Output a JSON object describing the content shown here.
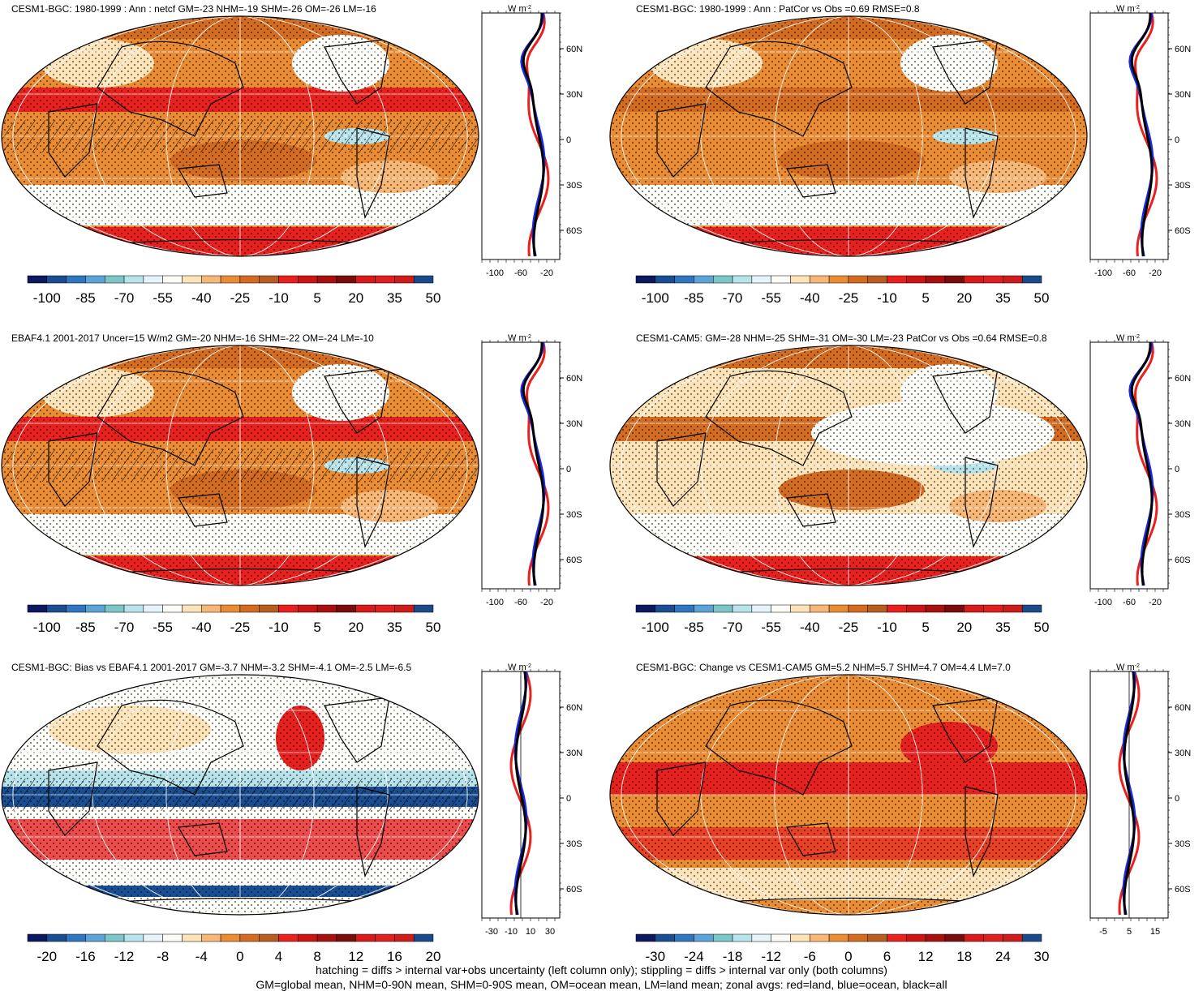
{
  "panels": [
    {
      "title": "CESM1-BGC: 1980-1999 : Ann : netcf GM=-23 NHM=-19 SHM=-26 OM=-26 LM=-16",
      "colorbar_labels": [
        "-100",
        "-85",
        "-70",
        "-55",
        "-40",
        "-25",
        "-10",
        "5",
        "20",
        "35",
        "50"
      ],
      "zonal_xticks": [
        "-100",
        "-60",
        "-20"
      ],
      "zonal_yticks": [
        "60N",
        "30N",
        "0",
        "30S",
        "60S"
      ],
      "zonal_units": "W m",
      "zonal_units_sup": "-2",
      "hatching": true
    },
    {
      "title": "CESM1-BGC: 1980-1999 : Ann : PatCor vs Obs =0.69 RMSE=0.8",
      "colorbar_labels": [
        "-100",
        "-85",
        "-70",
        "-55",
        "-40",
        "-25",
        "-10",
        "5",
        "20",
        "35",
        "50"
      ],
      "zonal_xticks": [
        "-100",
        "-60",
        "-20"
      ],
      "zonal_yticks": [
        "60N",
        "30N",
        "0",
        "30S",
        "60S"
      ],
      "zonal_units": "W m",
      "zonal_units_sup": "-2",
      "hatching": false
    },
    {
      "title": "EBAF4.1 2001-2017 Uncer=15 W/m2 GM=-20 NHM=-16 SHM=-22 OM=-24 LM=-10",
      "colorbar_labels": [
        "-100",
        "-85",
        "-70",
        "-55",
        "-40",
        "-25",
        "-10",
        "5",
        "20",
        "35",
        "50"
      ],
      "zonal_xticks": [
        "-100",
        "-60",
        "-20"
      ],
      "zonal_yticks": [
        "60N",
        "30N",
        "0",
        "30S",
        "60S"
      ],
      "zonal_units": "W m",
      "zonal_units_sup": "-2",
      "hatching": true
    },
    {
      "title": "CESM1-CAM5: GM=-28 NHM=-25 SHM=-31 OM=-30 LM=-23 PatCor vs Obs =0.64 RMSE=0.8",
      "colorbar_labels": [
        "-100",
        "-85",
        "-70",
        "-55",
        "-40",
        "-25",
        "-10",
        "5",
        "20",
        "35",
        "50"
      ],
      "zonal_xticks": [
        "-100",
        "-60",
        "-20"
      ],
      "zonal_yticks": [
        "60N",
        "30N",
        "0",
        "30S",
        "60S"
      ],
      "zonal_units": "W m",
      "zonal_units_sup": "-2",
      "hatching": false
    },
    {
      "title": "CESM1-BGC: Bias vs EBAF4.1 2001-2017 GM=-3.7 NHM=-3.2 SHM=-4.1 OM=-2.5 LM=-6.5",
      "colorbar_labels": [
        "-20",
        "-16",
        "-12",
        "-8",
        "-4",
        "0",
        "4",
        "8",
        "12",
        "16",
        "20"
      ],
      "zonal_xticks": [
        "-30",
        "-10",
        "10",
        "30"
      ],
      "zonal_yticks": [
        "60N",
        "30N",
        "0",
        "30S",
        "60S"
      ],
      "zonal_units": "W m",
      "zonal_units_sup": "-2",
      "hatching": true
    },
    {
      "title": "CESM1-BGC: Change vs CESM1-CAM5 GM=5.2 NHM=5.7 SHM=4.7 OM=4.4 LM=7.0",
      "colorbar_labels": [
        "-30",
        "-24",
        "-18",
        "-12",
        "-6",
        "0",
        "6",
        "12",
        "18",
        "24",
        "30"
      ],
      "zonal_xticks": [
        "-5",
        "5",
        "15"
      ],
      "zonal_yticks": [
        "60N",
        "30N",
        "0",
        "30S",
        "60S"
      ],
      "zonal_units": "W m",
      "zonal_units_sup": "-2",
      "hatching": false
    }
  ],
  "colors": {
    "colorbar": [
      "#0c1960",
      "#1a4e93",
      "#2f76bf",
      "#5ea3d8",
      "#7cc6c7",
      "#b7e3ea",
      "#e4f4f8",
      "#fbfbf7",
      "#fde3b8",
      "#f6b777",
      "#ea8c33",
      "#d36c20",
      "#b85d20",
      "#e8211f",
      "#cc1414",
      "#a81010",
      "#7a0c0c",
      "#d81a1a",
      "#e01f1f",
      "#ce1b1b",
      "#1a4a8a"
    ],
    "land": "#e8211f",
    "ocean": "#1a2ae0",
    "all": "#000000"
  },
  "footer": {
    "line1": "hatching = diffs > internal var+obs uncertainty (left column only); stippling = diffs > internal var only (both columns)",
    "line2": "GM=global mean, NHM=0-90N mean, SHM=0-90S mean, OM=ocean mean, LM=land mean; zonal avgs: red=land, blue=ocean, black=all"
  }
}
